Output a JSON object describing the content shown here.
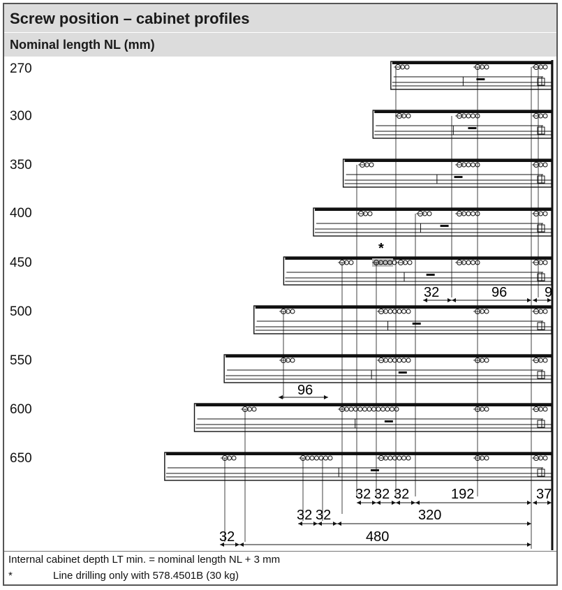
{
  "title": "Screw position – cabinet profiles",
  "subtitle": "Nominal length NL (mm)",
  "rows": [
    {
      "label": "270",
      "length": 270,
      "holes": [
        [
          564,
          1
        ],
        [
          678,
          1
        ],
        [
          762,
          1
        ]
      ]
    },
    {
      "label": "300",
      "length": 300,
      "holes": [
        [
          566,
          1
        ],
        [
          652,
          2
        ],
        [
          762,
          1
        ]
      ]
    },
    {
      "label": "350",
      "length": 350,
      "holes": [
        [
          513,
          1
        ],
        [
          652,
          2
        ],
        [
          762,
          1
        ]
      ]
    },
    {
      "label": "400",
      "length": 400,
      "holes": [
        [
          511,
          1
        ],
        [
          596,
          1
        ],
        [
          652,
          2
        ],
        [
          762,
          1
        ]
      ]
    },
    {
      "label": "450",
      "length": 450,
      "holes": [
        [
          484,
          1
        ],
        [
          533,
          2
        ],
        [
          568,
          1
        ],
        [
          652,
          2
        ],
        [
          762,
          1
        ]
      ]
    },
    {
      "label": "500",
      "length": 500,
      "holes": [
        [
          400,
          1
        ],
        [
          540,
          3
        ],
        [
          678,
          1
        ],
        [
          762,
          1
        ]
      ]
    },
    {
      "label": "550",
      "length": 550,
      "holes": [
        [
          400,
          1
        ],
        [
          540,
          3
        ],
        [
          678,
          1
        ],
        [
          762,
          1
        ]
      ]
    },
    {
      "label": "600",
      "length": 600,
      "holes": [
        [
          345,
          1
        ],
        [
          484,
          6
        ],
        [
          678,
          1
        ],
        [
          762,
          1
        ]
      ]
    },
    {
      "label": "650",
      "length": 650,
      "holes": [
        [
          316,
          1
        ],
        [
          428,
          3
        ],
        [
          540,
          3
        ],
        [
          678,
          1
        ],
        [
          762,
          1
        ]
      ]
    }
  ],
  "asterisk": "*",
  "dimensions": {
    "d450_32": "32",
    "d450_96": "96",
    "d450_9": "9",
    "d550_96": "96",
    "b1_32a": "32",
    "b1_32b": "32",
    "b1_32c": "32",
    "b1_192": "192",
    "b1_37": "37",
    "b2_32a": "32",
    "b2_32b": "32",
    "b2_320": "320",
    "b3_32": "32",
    "b3_480": "480"
  },
  "footnote_1": "Internal cabinet depth LT min. = nominal length NL + 3 mm",
  "footnote_2_mark": "*",
  "footnote_2_text": "Line drilling only with 578.4501B (30 kg)"
}
